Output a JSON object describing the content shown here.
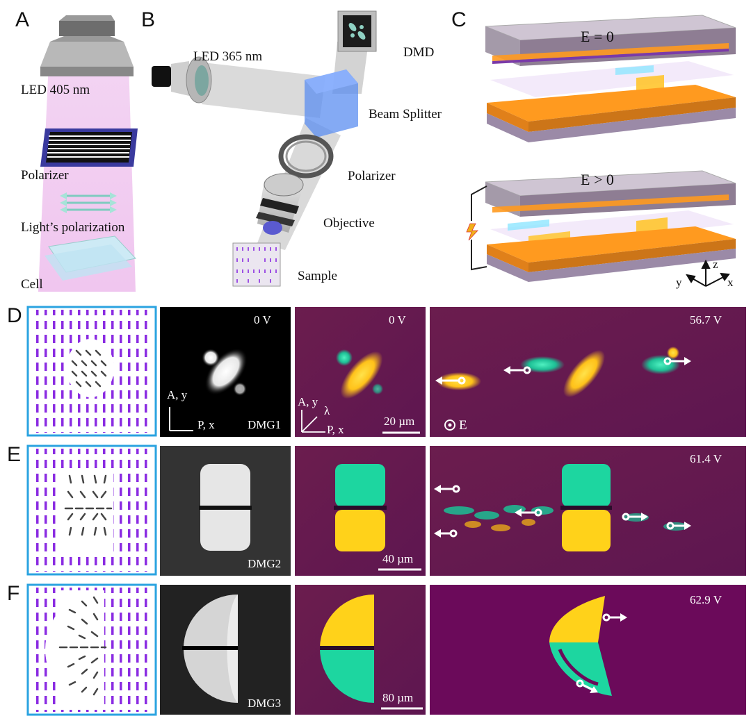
{
  "figure": {
    "panels": {
      "A": {
        "letter": "A",
        "labels": {
          "led": "LED  405 nm",
          "polarizer": "Polarizer",
          "light_polarization": "Light’s polarization",
          "cell": "Cell"
        }
      },
      "B": {
        "letter": "B",
        "labels": {
          "led": "LED  365 nm",
          "dmd": "DMD",
          "beam_splitter": "Beam Splitter",
          "polarizer": "Polarizer",
          "objective": "Objective",
          "sample": "Sample"
        }
      },
      "C": {
        "letter": "C",
        "labels": {
          "field_off": "E = 0",
          "field_on": "E > 0",
          "axis_x": "x",
          "axis_y": "y",
          "axis_z": "z"
        }
      }
    },
    "rows": [
      {
        "letter": "D",
        "pattern_name": "DMG1",
        "voltage_static": "0 V",
        "voltage_static_color": "0 V",
        "voltage_driven": "56.7 V",
        "scale_bar": "20 µm",
        "axes_bw": {
          "analyzer": "A, y",
          "polarizer": "P, x"
        },
        "axes_color": {
          "analyzer": "A, y",
          "wave": "λ",
          "polarizer": "P, x"
        },
        "field_symbol": "E"
      },
      {
        "letter": "E",
        "pattern_name": "DMG2",
        "voltage_driven": "61.4 V",
        "scale_bar": "40 µm"
      },
      {
        "letter": "F",
        "pattern_name": "DMG3",
        "voltage_driven": "62.9 V",
        "scale_bar": "80 µm"
      }
    ]
  },
  "colors": {
    "pattern_frame": "#2aa3e0",
    "purple_dash": "#8a2be2",
    "pol_bg": "#6a1a52",
    "yellow": "#ffd21a",
    "green": "#1dd6a0",
    "pink_beam": "#efc8ef",
    "orange_layer": "#ff9a1f",
    "glass": "#8e7d93"
  }
}
